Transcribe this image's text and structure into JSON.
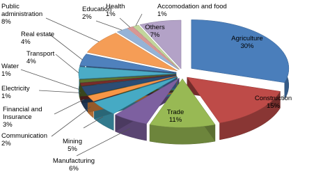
{
  "chart_data": {
    "type": "pie3d",
    "categories": [
      "Agriculture",
      "Construction",
      "Trade",
      "Manufacturing",
      "Mining",
      "Communication",
      "Financial and Insurance",
      "Electricity",
      "Water",
      "Transport",
      "Real estate",
      "Public administration",
      "Education",
      "Health",
      "Accomodation and food",
      "Others"
    ],
    "values": [
      30,
      15,
      11,
      6,
      5,
      2,
      3,
      1,
      1,
      4,
      4,
      8,
      2,
      1,
      1,
      7
    ],
    "value_labels": [
      "30%",
      "15%",
      "11%",
      "6%",
      "5%",
      "2%",
      "3%",
      "1%",
      "1%",
      "4%",
      "4%",
      "8%",
      "2%",
      "1%",
      "1%",
      "7%"
    ],
    "colors": [
      "#4a7ebb",
      "#be4b48",
      "#98b954",
      "#7d60a0",
      "#46aac4",
      "#f79646",
      "#2c4d75",
      "#772c2a",
      "#5f7530",
      "#4bacc6",
      "#4f81bd",
      "#f59d56",
      "#95b3d7",
      "#d99694",
      "#c3d69b",
      "#b3a2c7"
    ]
  }
}
